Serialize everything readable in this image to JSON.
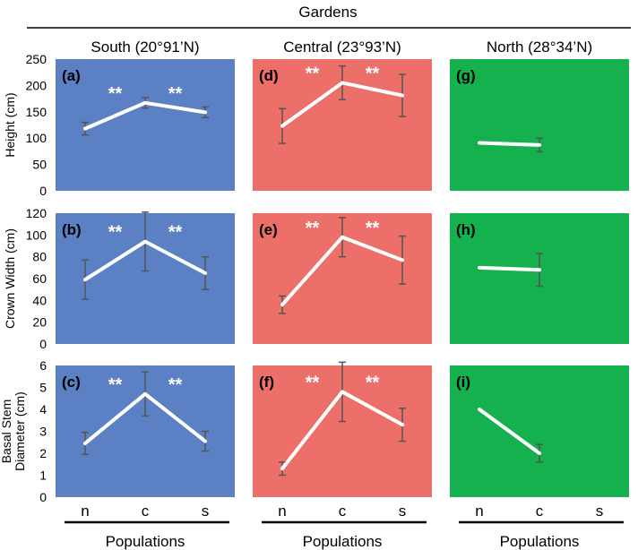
{
  "figure_title": "Gardens",
  "x_axis_title": "Populations",
  "colors": {
    "south": "#5b80c4",
    "central": "#ec6f69",
    "north": "#16b14f",
    "line": "#ffffff",
    "error_bar": "#555555",
    "axis": "#000000"
  },
  "chart_data": {
    "type": "line",
    "gardens": [
      "South (20°91’N)",
      "Central (23°93’N)",
      "North (28°34’N)"
    ],
    "categories": [
      "n",
      "c",
      "s"
    ],
    "xlabel": "Populations",
    "rows": [
      {
        "ylabel": "Height (cm)",
        "ylim": [
          0,
          250
        ],
        "ticks": [
          0,
          50,
          100,
          150,
          200,
          250
        ]
      },
      {
        "ylabel": "Crown Width (cm)",
        "ylim": [
          0,
          120
        ],
        "ticks": [
          0,
          20,
          40,
          60,
          80,
          100,
          120
        ]
      },
      {
        "ylabel": "Basal Stem Diameter (cm)",
        "ylim": [
          0,
          6
        ],
        "ticks": [
          0,
          1,
          2,
          3,
          4,
          5,
          6
        ]
      }
    ],
    "panels": [
      {
        "label": "(a)",
        "garden": 0,
        "row": 0,
        "values": [
          118,
          167,
          149
        ],
        "errors": [
          12,
          10,
          10
        ],
        "sig": [
          "**",
          "**"
        ]
      },
      {
        "label": "(b)",
        "garden": 0,
        "row": 1,
        "values": [
          59,
          94,
          65
        ],
        "errors": [
          18,
          27,
          15
        ],
        "sig": [
          "**",
          "**"
        ]
      },
      {
        "label": "(c)",
        "garden": 0,
        "row": 2,
        "values": [
          2.45,
          4.7,
          2.55
        ],
        "errors": [
          0.5,
          1.0,
          0.45
        ],
        "sig": [
          "**",
          "**"
        ]
      },
      {
        "label": "(d)",
        "garden": 1,
        "row": 0,
        "values": [
          123,
          205,
          181
        ],
        "errors": [
          33,
          32,
          40
        ],
        "sig": [
          "**",
          "**"
        ]
      },
      {
        "label": "(e)",
        "garden": 1,
        "row": 1,
        "values": [
          36,
          98,
          77
        ],
        "errors": [
          8,
          18,
          22
        ],
        "sig": [
          "**",
          "**"
        ]
      },
      {
        "label": "(f)",
        "garden": 1,
        "row": 2,
        "values": [
          1.3,
          4.8,
          3.3
        ],
        "errors": [
          0.3,
          1.35,
          0.75
        ],
        "sig": [
          "**",
          "**"
        ]
      },
      {
        "label": "(g)",
        "garden": 2,
        "row": 0,
        "values": [
          91,
          87,
          null
        ],
        "errors": [
          null,
          13,
          null
        ],
        "sig": []
      },
      {
        "label": "(h)",
        "garden": 2,
        "row": 1,
        "values": [
          70,
          68,
          null
        ],
        "errors": [
          null,
          15,
          null
        ],
        "sig": []
      },
      {
        "label": "(i)",
        "garden": 2,
        "row": 2,
        "values": [
          4.0,
          2.0,
          null
        ],
        "errors": [
          null,
          0.4,
          null
        ],
        "sig": []
      }
    ]
  }
}
